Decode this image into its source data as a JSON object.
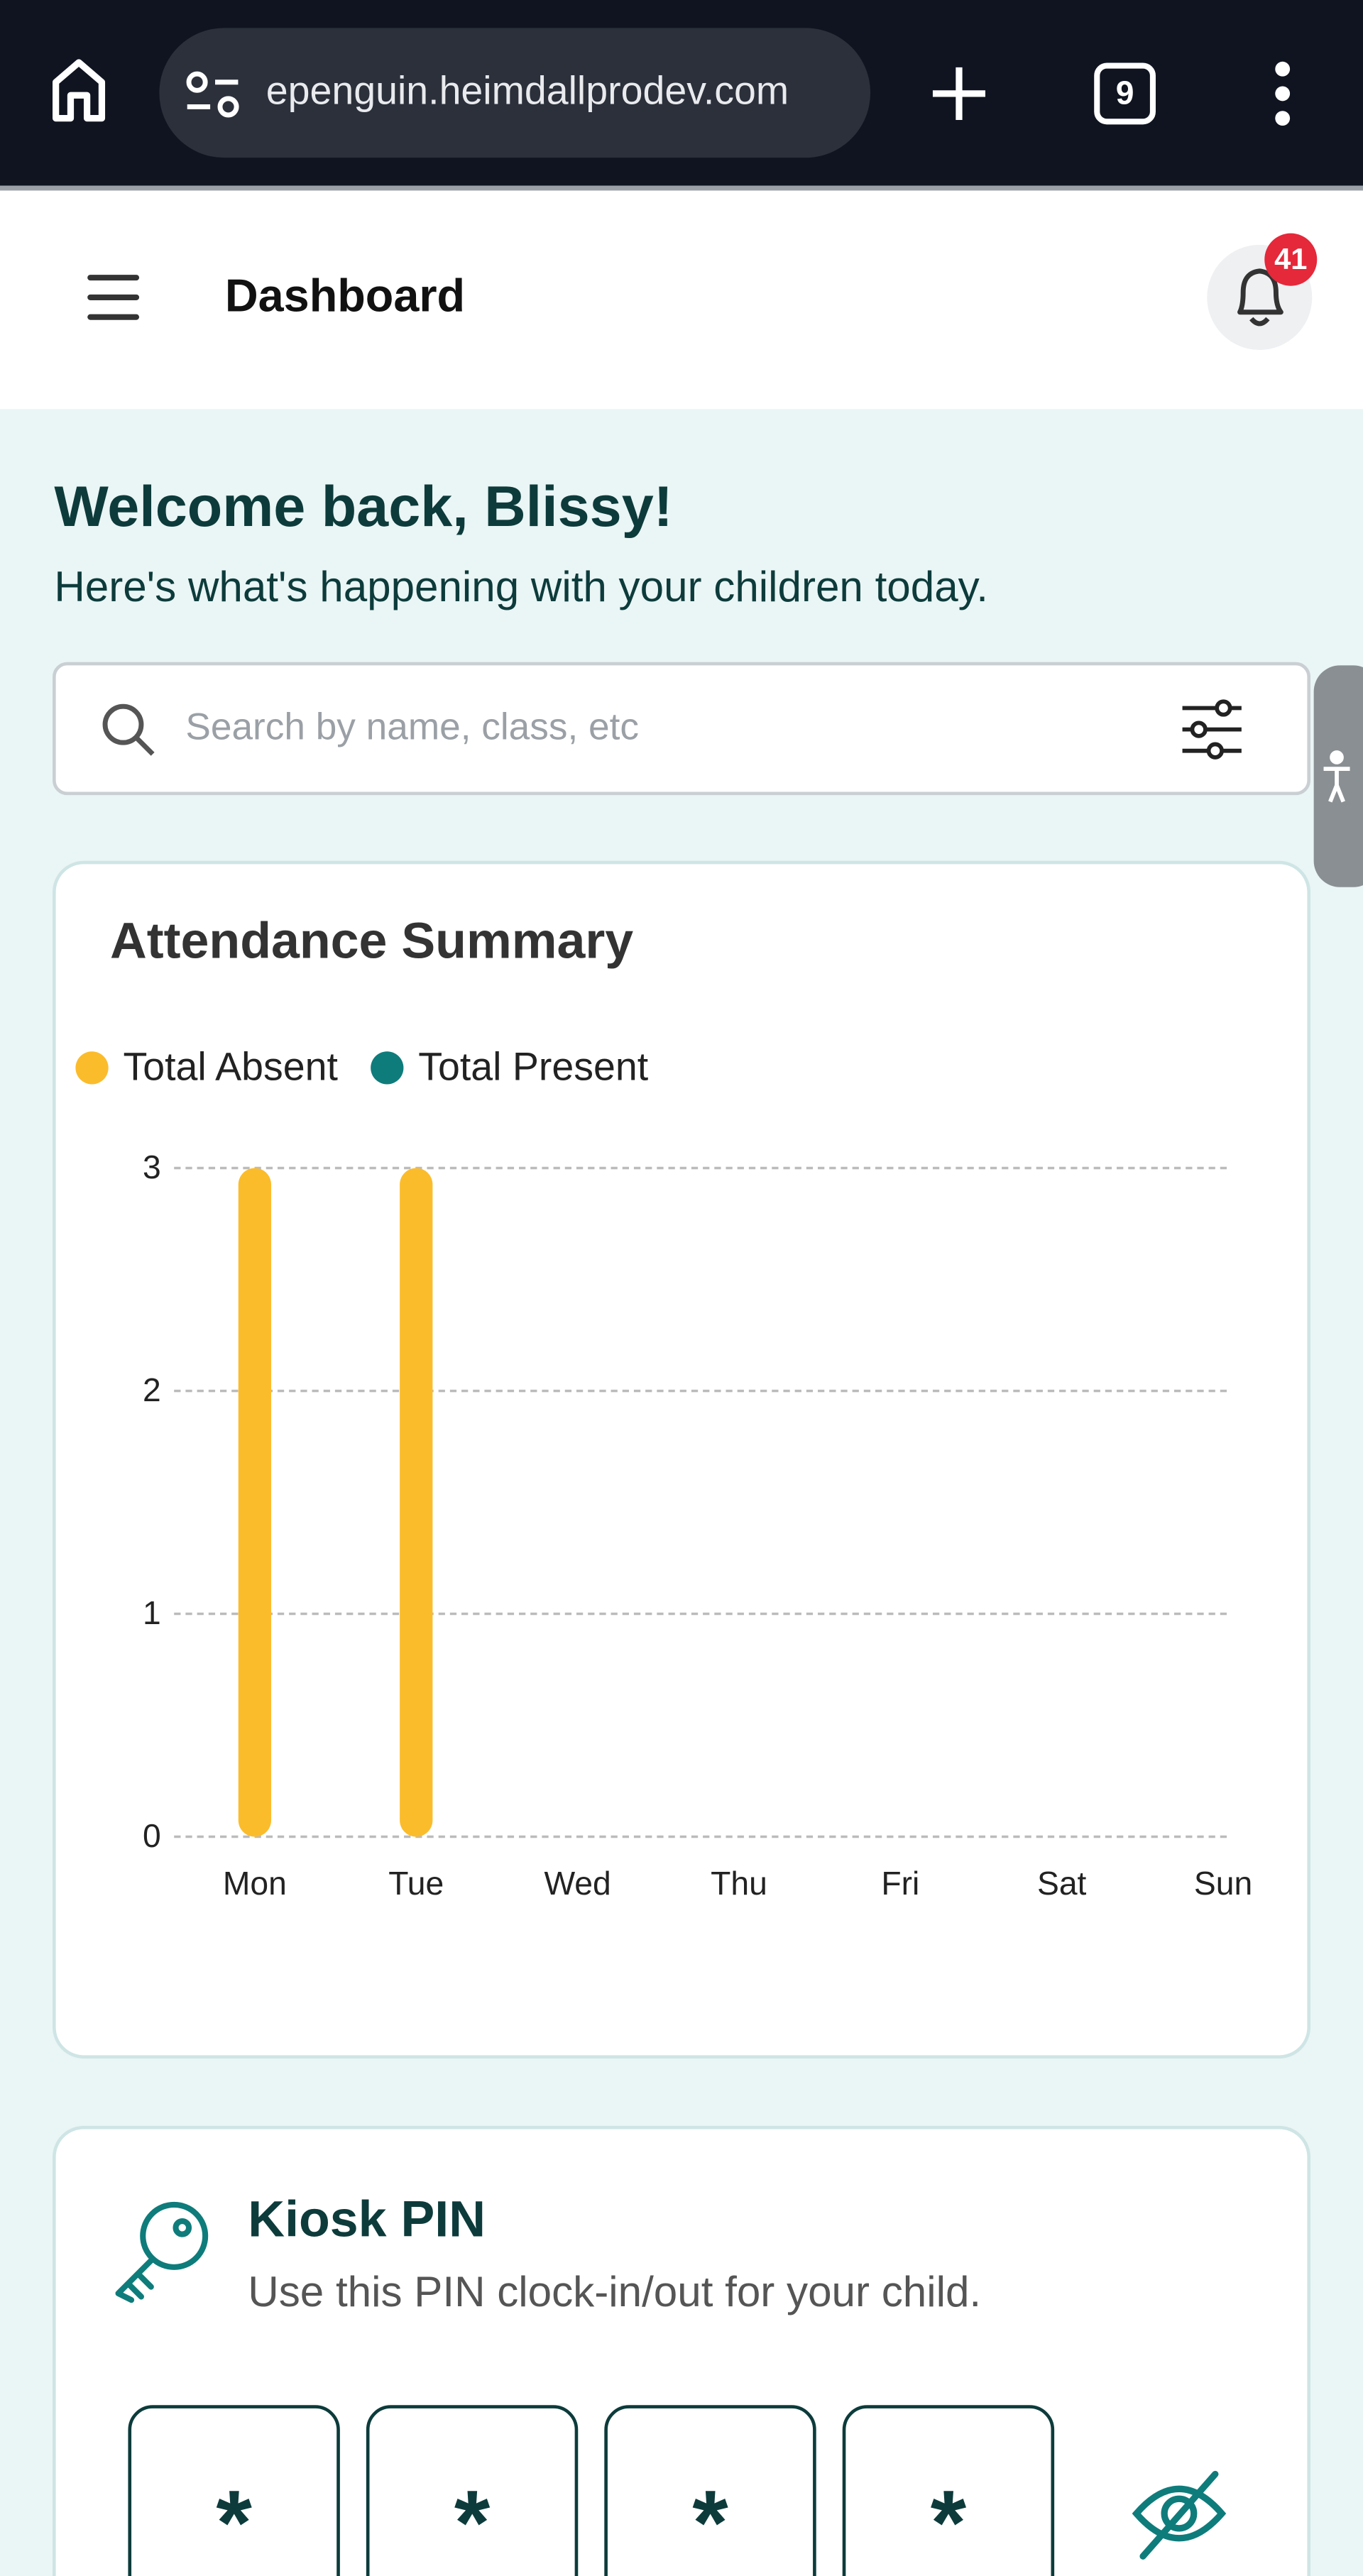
{
  "browser": {
    "url": "epenguin.heimdallprodev.com",
    "tab_count": 9
  },
  "header": {
    "title": "Dashboard",
    "notification_count": 41
  },
  "welcome": {
    "title": "Welcome back, Blissy!",
    "subtitle": "Here's what's happening with your children today."
  },
  "search": {
    "placeholder": "Search by name, class, etc"
  },
  "chart_data": {
    "type": "bar",
    "title": "Attendance Summary",
    "categories": [
      "Mon",
      "Tue",
      "Wed",
      "Thu",
      "Fri",
      "Sat",
      "Sun"
    ],
    "series": [
      {
        "name": "Total Absent",
        "color": "#fbbc2c",
        "values": [
          3,
          3,
          0,
          0,
          0,
          0,
          0
        ]
      },
      {
        "name": "Total Present",
        "color": "#0e7c7b",
        "values": [
          0,
          0,
          0,
          0,
          0,
          0,
          0
        ]
      }
    ],
    "ylim": [
      0,
      3
    ],
    "yticks": [
      0,
      1,
      2,
      3
    ],
    "grid": true,
    "stacked": true,
    "legend": "top-left"
  },
  "kiosk": {
    "title": "Kiosk PIN",
    "subtitle": "Use this PIN clock-in/out for your child.",
    "pin": [
      "*",
      "*",
      "*",
      "*"
    ]
  }
}
